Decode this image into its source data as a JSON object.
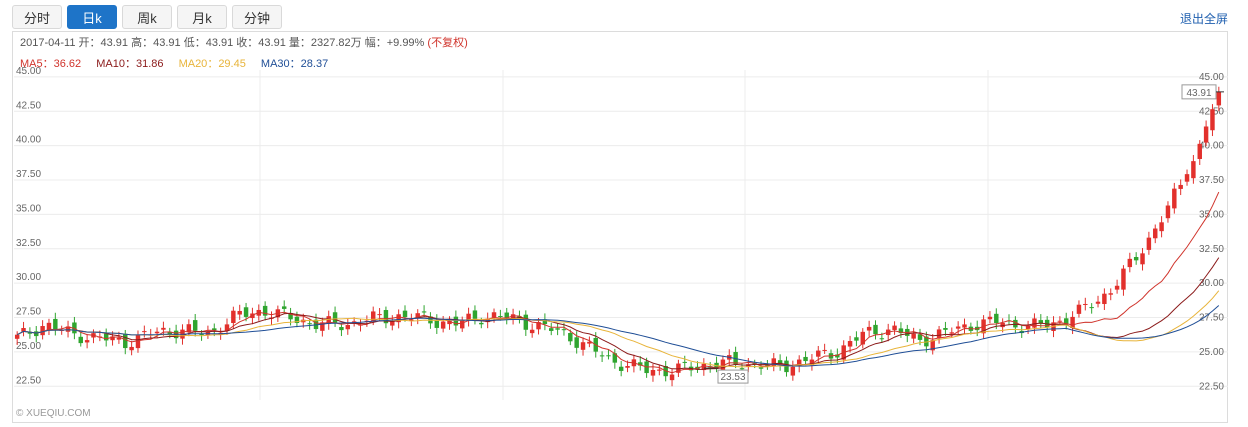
{
  "tabs": [
    {
      "label": "分时",
      "active": false
    },
    {
      "label": "日k",
      "active": true
    },
    {
      "label": "周k",
      "active": false
    },
    {
      "label": "月k",
      "active": false
    },
    {
      "label": "分钟",
      "active": false
    }
  ],
  "exit_fullscreen": "退出全屏",
  "info": {
    "date": "2017-04-11",
    "open_label": "开",
    "open": "43.91",
    "high_label": "高",
    "high": "43.91",
    "low_label": "低",
    "low": "43.91",
    "close_label": "收",
    "close": "43.91",
    "volume_label": "量",
    "volume": "2327.82万",
    "change_label": "幅",
    "change": "+9.99%",
    "adjust": "(不复权)"
  },
  "ma": [
    {
      "label": "MA5",
      "value": "36.62",
      "color": "#d0342c"
    },
    {
      "label": "MA10",
      "value": "31.86",
      "color": "#8b1a1a"
    },
    {
      "label": "MA20",
      "value": "29.45",
      "color": "#e8b43a"
    },
    {
      "label": "MA30",
      "value": "28.37",
      "color": "#1f4e96"
    }
  ],
  "watermark": "© XUEQIU.COM",
  "colors": {
    "up": "#e2302c",
    "down": "#2fa52f",
    "accent": "#1e74c8"
  },
  "chart_data": {
    "type": "candlestick",
    "y_ticks": [
      "45.00",
      "42.50",
      "40.00",
      "37.50",
      "35.00",
      "32.50",
      "30.00",
      "27.50",
      "25.00",
      "22.50"
    ],
    "ylim": [
      21.5,
      45.5
    ],
    "grid": true,
    "last_price": "43.91",
    "min_label": "23.53",
    "close_path": [
      26.0,
      27.0,
      26.3,
      26.0,
      25.7,
      26.4,
      26.6,
      26.3,
      27.6,
      28.0,
      27.5,
      27.0,
      27.0,
      27.4,
      27.6,
      27.4,
      27.0,
      27.6,
      27.5,
      26.9,
      26.4,
      25.2,
      24.2,
      23.7,
      23.6,
      24.0,
      24.2,
      24.1,
      23.9,
      24.5,
      25.0,
      26.3,
      26.7,
      25.8,
      26.4,
      27.0,
      27.2,
      26.8,
      27.1,
      28.0,
      29.4,
      31.9,
      35.0,
      38.5,
      43.91
    ],
    "candle_count": 190,
    "ma5_end": "36.62",
    "ma10_end": "31.86",
    "ma20_end": "29.45",
    "ma30_end": "28.37"
  }
}
